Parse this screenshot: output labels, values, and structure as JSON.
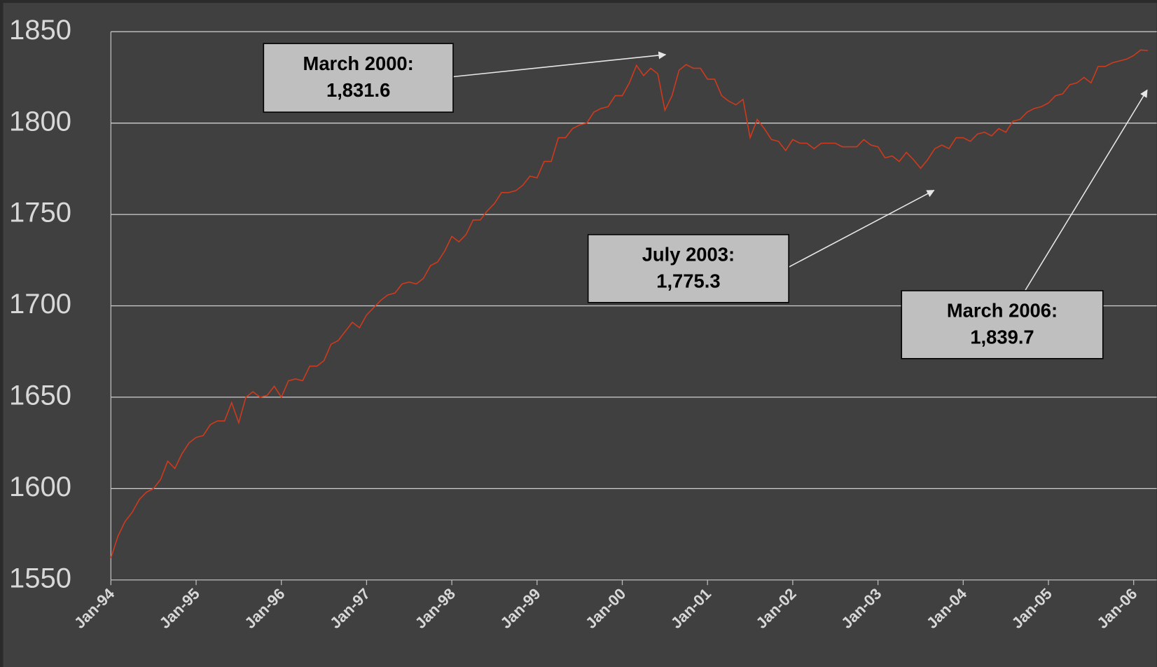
{
  "chart_data": {
    "type": "line",
    "categories": [
      "Jan-94",
      null,
      null,
      null,
      null,
      null,
      null,
      null,
      null,
      null,
      null,
      null,
      "Jan-95",
      null,
      null,
      null,
      null,
      null,
      null,
      null,
      null,
      null,
      null,
      null,
      "Jan-96",
      null,
      null,
      null,
      null,
      null,
      null,
      null,
      null,
      null,
      null,
      null,
      "Jan-97",
      null,
      null,
      null,
      null,
      null,
      null,
      null,
      null,
      null,
      null,
      null,
      "Jan-98",
      null,
      null,
      null,
      null,
      null,
      null,
      null,
      null,
      null,
      null,
      null,
      "Jan-99",
      null,
      null,
      null,
      null,
      null,
      null,
      null,
      null,
      null,
      null,
      null,
      "Jan-00",
      null,
      null,
      null,
      null,
      null,
      null,
      null,
      null,
      null,
      null,
      null,
      "Jan-01",
      null,
      null,
      null,
      null,
      null,
      null,
      null,
      null,
      null,
      null,
      null,
      "Jan-02",
      null,
      null,
      null,
      null,
      null,
      null,
      null,
      null,
      null,
      null,
      null,
      "Jan-03",
      null,
      null,
      null,
      null,
      null,
      null,
      null,
      null,
      null,
      null,
      null,
      "Jan-04",
      null,
      null,
      null,
      null,
      null,
      null,
      null,
      null,
      null,
      null,
      null,
      "Jan-05",
      null,
      null,
      null,
      null,
      null,
      null,
      null,
      null,
      null,
      null,
      null,
      "Jan-06",
      null,
      null
    ],
    "series": [
      {
        "color": "#d03a1c",
        "values": [
          1562,
          1574,
          1582,
          1587,
          1594,
          1598,
          1600,
          1605,
          1615,
          1611,
          1619,
          1625,
          1628,
          1629,
          1635,
          1637,
          1637,
          1647,
          1636,
          1650,
          1653,
          1650,
          1651,
          1656,
          1650,
          1659,
          1660,
          1659,
          1667,
          1667,
          1670,
          1679,
          1681,
          1686,
          1691,
          1688,
          1695,
          1699,
          1703,
          1706,
          1707,
          1712,
          1713,
          1712,
          1715,
          1722,
          1724,
          1730,
          1738,
          1735,
          1739,
          1747,
          1747,
          1752,
          1756,
          1762,
          1762,
          1763,
          1766,
          1771,
          1770,
          1779,
          1779,
          1792,
          1792,
          1797,
          1799,
          1800,
          1806,
          1808,
          1809,
          1815,
          1815,
          1822,
          1831.6,
          1826,
          1830,
          1827,
          1807,
          1815,
          1829,
          1832,
          1830,
          1830,
          1824,
          1824,
          1815,
          1812,
          1810,
          1813,
          1792,
          1802,
          1797,
          1791,
          1790,
          1785,
          1791,
          1789,
          1789,
          1786,
          1789,
          1789,
          1789,
          1787,
          1787,
          1787,
          1791,
          1788,
          1787,
          1781,
          1782,
          1779,
          1784,
          1780,
          1775.3,
          1780,
          1786,
          1788,
          1786,
          1792,
          1792,
          1790,
          1794,
          1795,
          1793,
          1797,
          1795,
          1801,
          1802,
          1806,
          1808,
          1809,
          1811,
          1815,
          1816,
          1821,
          1822,
          1825,
          1822,
          1831,
          1831,
          1833,
          1834,
          1835,
          1837,
          1840,
          1839.7
        ]
      }
    ],
    "ylim": [
      1550,
      1850
    ],
    "yticks": [
      1550,
      1600,
      1650,
      1700,
      1750,
      1800,
      1850
    ],
    "grid": true,
    "annotations": [
      {
        "title": "March 2000:",
        "text": "1,831.6"
      },
      {
        "title": "July 2003:",
        "text": "1,775.3"
      },
      {
        "title": "March 2006:",
        "text": "1,839.7"
      }
    ]
  }
}
